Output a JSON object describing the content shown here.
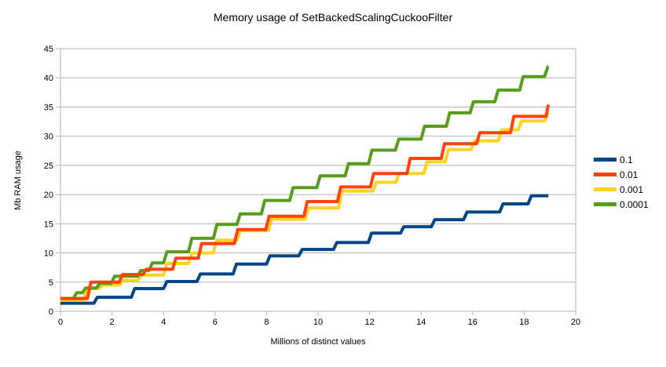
{
  "title": "Memory usage of SetBackedScalingCuckooFilter",
  "chart_data": {
    "type": "line",
    "line_style": "step-after",
    "title": "Memory usage of SetBackedScalingCuckooFilter",
    "xlabel": "Millions of distinct values",
    "ylabel": "Mb RAM usage",
    "xlim": [
      0,
      20
    ],
    "ylim": [
      0,
      45
    ],
    "xticks": [
      0,
      2,
      4,
      6,
      8,
      10,
      12,
      14,
      16,
      18,
      20
    ],
    "yticks": [
      0,
      5,
      10,
      15,
      20,
      25,
      30,
      35,
      40,
      45
    ],
    "grid": "horizontal",
    "legend_position": "right",
    "x_end": 18.94,
    "series": [
      {
        "name": "0.1",
        "color": "#004586",
        "steps": [
          [
            0,
            1.4
          ],
          [
            1.3,
            2.4
          ],
          [
            2.75,
            3.9
          ],
          [
            4.0,
            5.1
          ],
          [
            5.3,
            6.4
          ],
          [
            6.7,
            8.1
          ],
          [
            8.0,
            9.5
          ],
          [
            9.25,
            10.6
          ],
          [
            10.6,
            11.8
          ],
          [
            11.95,
            13.4
          ],
          [
            13.2,
            14.5
          ],
          [
            14.4,
            15.7
          ],
          [
            15.65,
            17.0
          ],
          [
            17.05,
            18.4
          ],
          [
            18.15,
            19.8
          ]
        ]
      },
      {
        "name": "0.01",
        "color": "#ff420e",
        "steps": [
          [
            0,
            2.2
          ],
          [
            1.05,
            5.0
          ],
          [
            2.28,
            6.3
          ],
          [
            3.2,
            7.2
          ],
          [
            4.35,
            9.1
          ],
          [
            5.35,
            11.6
          ],
          [
            6.75,
            14.0
          ],
          [
            7.97,
            16.3
          ],
          [
            9.45,
            18.8
          ],
          [
            10.75,
            21.3
          ],
          [
            12.03,
            23.6
          ],
          [
            13.45,
            26.2
          ],
          [
            14.78,
            28.7
          ],
          [
            16.15,
            30.6
          ],
          [
            17.47,
            33.4
          ],
          [
            18.85,
            35.4
          ]
        ]
      },
      {
        "name": "0.001",
        "color": "#ffd320",
        "steps": [
          [
            0,
            1.9
          ],
          [
            0.9,
            3.9
          ],
          [
            1.5,
            4.5
          ],
          [
            2.3,
            5.3
          ],
          [
            3.0,
            6.2
          ],
          [
            4.0,
            8.2
          ],
          [
            4.97,
            10.0
          ],
          [
            5.93,
            12.2
          ],
          [
            6.85,
            13.8
          ],
          [
            8.07,
            15.8
          ],
          [
            9.5,
            17.7
          ],
          [
            10.8,
            20.6
          ],
          [
            12.13,
            22.1
          ],
          [
            13.02,
            23.6
          ],
          [
            14.1,
            25.6
          ],
          [
            14.93,
            27.7
          ],
          [
            15.94,
            29.2
          ],
          [
            17.0,
            31.1
          ],
          [
            17.77,
            32.6
          ],
          [
            18.8,
            34.1
          ]
        ]
      },
      {
        "name": "0.0001",
        "color": "#579d1c",
        "steps": [
          [
            0,
            2.2
          ],
          [
            0.5,
            3.2
          ],
          [
            0.85,
            4.0
          ],
          [
            1.4,
            4.8
          ],
          [
            1.97,
            6.0
          ],
          [
            2.99,
            7.0
          ],
          [
            3.44,
            8.3
          ],
          [
            4.0,
            10.2
          ],
          [
            4.97,
            12.5
          ],
          [
            5.94,
            14.9
          ],
          [
            6.85,
            16.7
          ],
          [
            7.8,
            19.0
          ],
          [
            8.9,
            21.2
          ],
          [
            9.95,
            23.2
          ],
          [
            11.05,
            25.3
          ],
          [
            11.96,
            27.6
          ],
          [
            13.0,
            29.5
          ],
          [
            14.0,
            31.7
          ],
          [
            14.98,
            34.0
          ],
          [
            15.9,
            35.9
          ],
          [
            16.86,
            37.9
          ],
          [
            17.83,
            40.2
          ],
          [
            18.79,
            41.9
          ]
        ]
      }
    ],
    "draw_order": [
      0,
      2,
      3,
      1
    ],
    "line_width": 4
  },
  "colors": {
    "grid": "#b3b3b3",
    "axis": "#b3b3b3",
    "text": "#000000",
    "background": "#ffffff"
  }
}
